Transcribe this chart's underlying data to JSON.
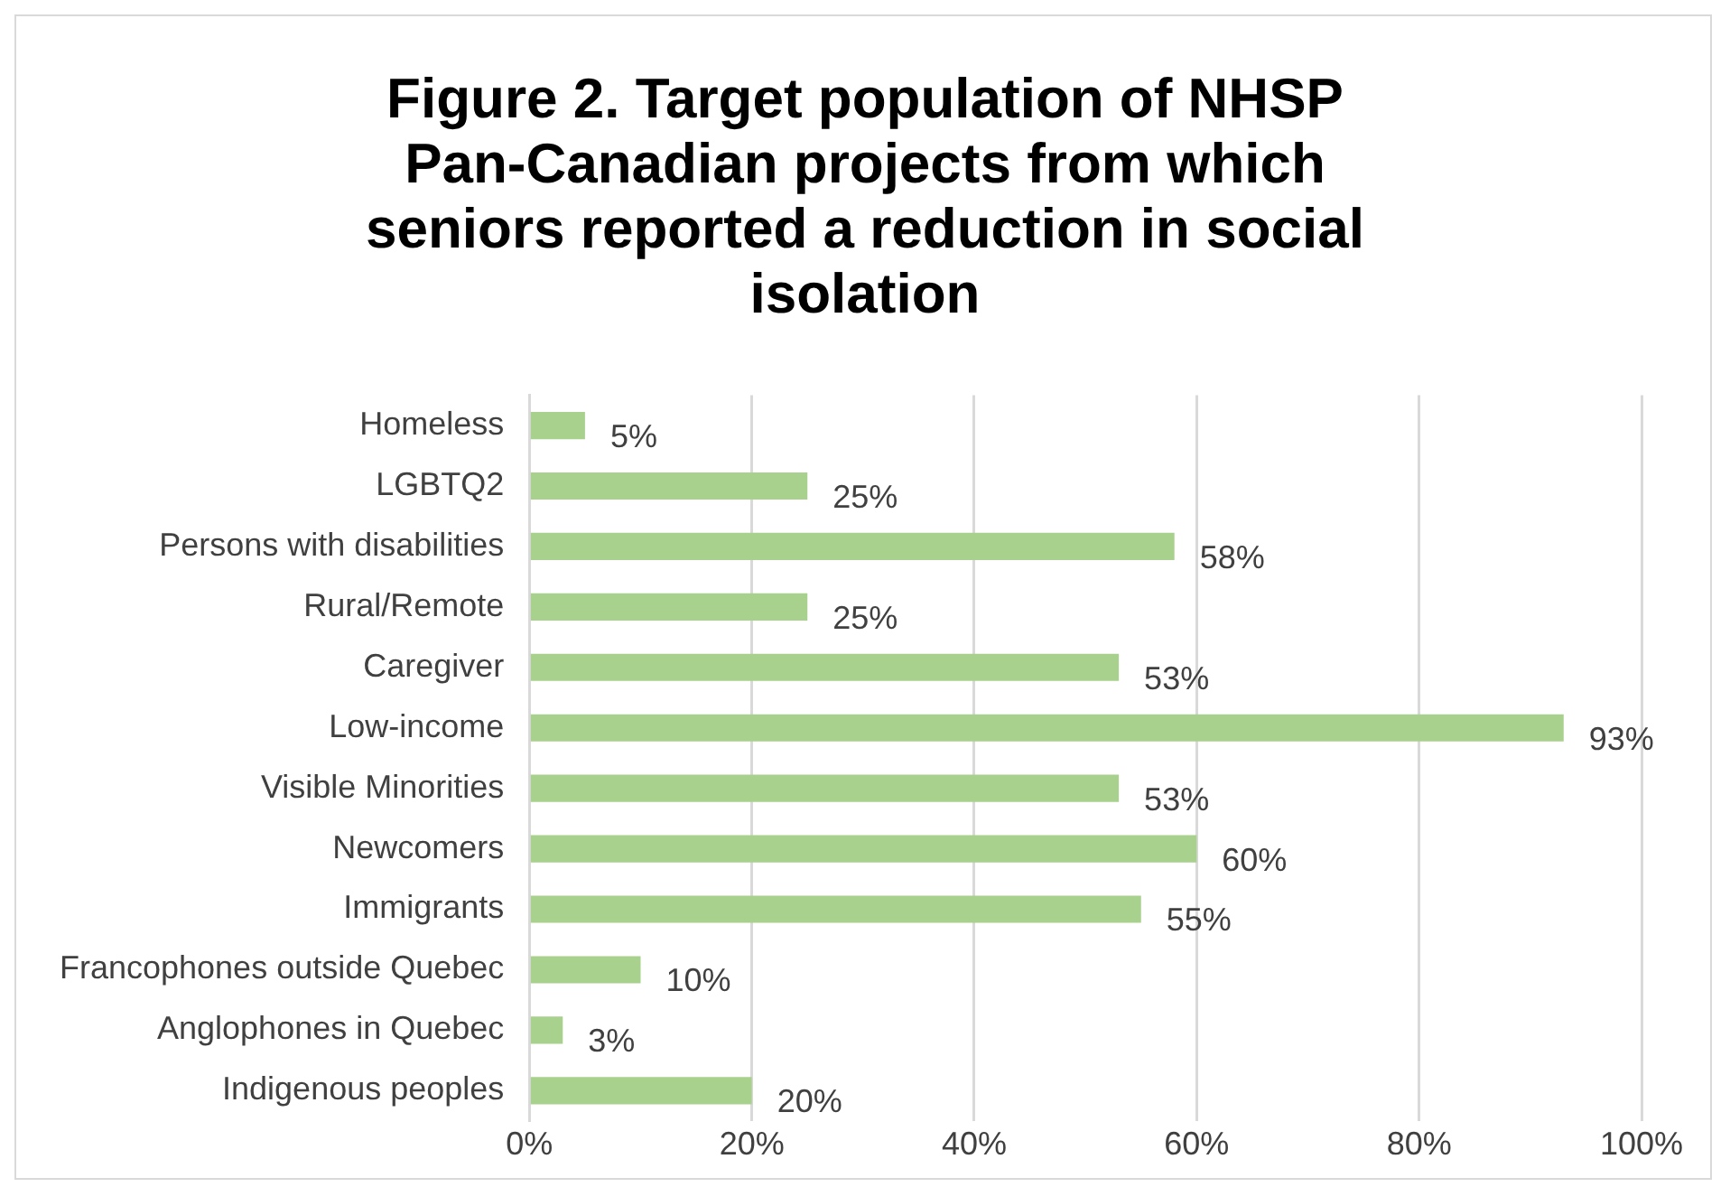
{
  "chart_data": {
    "type": "bar",
    "orientation": "horizontal",
    "title": "Figure 2. Target population of NHSP Pan-Canadian projects from which seniors reported a reduction in social isolation",
    "categories": [
      "Homeless",
      "LGBTQ2",
      "Persons with disabilities",
      "Rural/Remote",
      "Caregiver",
      "Low-income",
      "Visible Minorities",
      "Newcomers",
      "Immigrants",
      "Francophones outside Quebec",
      "Anglophones in Quebec",
      "Indigenous peoples"
    ],
    "values": [
      5,
      25,
      58,
      25,
      53,
      93,
      53,
      60,
      55,
      10,
      3,
      20
    ],
    "value_labels": [
      "5%",
      "25%",
      "58%",
      "25%",
      "53%",
      "93%",
      "53%",
      "60%",
      "55%",
      "10%",
      "3%",
      "20%"
    ],
    "color": "#a9d18e",
    "xlim": [
      0,
      100
    ],
    "xticks": [
      {
        "value": 0,
        "label": "0%"
      },
      {
        "value": 20,
        "label": "20%"
      },
      {
        "value": 40,
        "label": "40%"
      },
      {
        "value": 60,
        "label": "60%"
      },
      {
        "value": 80,
        "label": "80%"
      },
      {
        "value": 100,
        "label": "100%"
      }
    ],
    "grid": "x",
    "legend": false
  }
}
